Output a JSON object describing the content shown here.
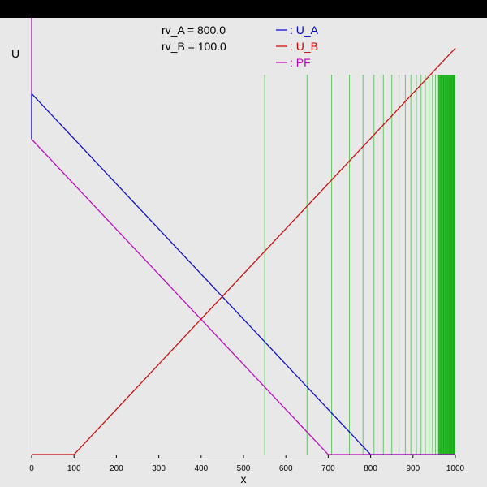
{
  "window": {
    "title": ""
  },
  "chart_data": {
    "type": "line",
    "title": "",
    "xlabel": "x",
    "ylabel": "U",
    "xlim": [
      0,
      1000
    ],
    "ylim": [
      0,
      1000
    ],
    "xticks": [
      0,
      100,
      200,
      300,
      400,
      500,
      600,
      700,
      800,
      900,
      1000
    ],
    "annotations": [
      {
        "label": "rv_A = 800.0"
      },
      {
        "label": "rv_B = 100.0"
      }
    ],
    "series": [
      {
        "name": ": U_A",
        "color": "#0000cc",
        "x": [
          0,
          800,
          1000
        ],
        "y": [
          950,
          0,
          0
        ]
      },
      {
        "name": ": U_B",
        "color": "#cc0000",
        "x": [
          0,
          100,
          1000
        ],
        "y": [
          0,
          0,
          1070
        ]
      },
      {
        "name": ": PF",
        "color": "#bb00bb",
        "x": [
          0,
          700,
          1000
        ],
        "y": [
          830,
          0,
          0
        ]
      }
    ],
    "vlines": {
      "color": "#00aa00",
      "x": [
        550,
        650,
        708,
        750,
        782,
        808,
        830,
        850,
        867,
        882,
        895,
        908,
        919,
        929,
        938,
        946,
        953,
        960,
        966,
        972,
        977,
        981,
        985,
        989,
        992,
        995,
        997,
        999
      ]
    }
  }
}
